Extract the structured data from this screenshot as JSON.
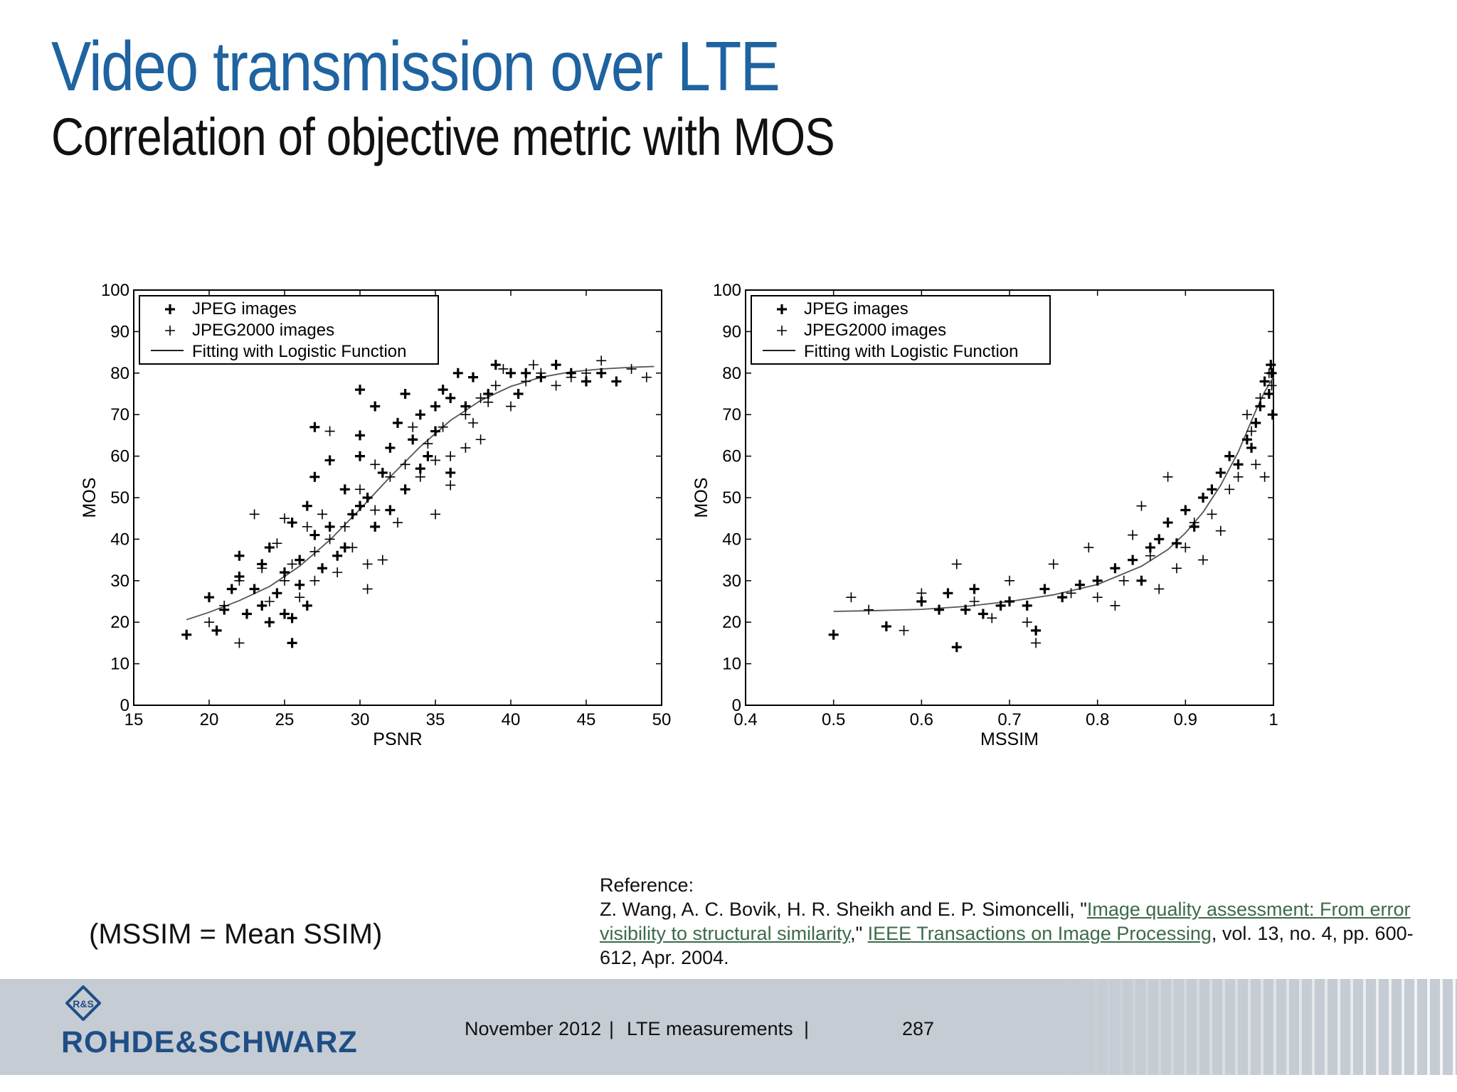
{
  "slide": {
    "title": "Video transmission over LTE",
    "subtitle": "Correlation of objective metric with MOS",
    "note": "(MSSIM = Mean SSIM)"
  },
  "reference": {
    "heading": "Reference:",
    "authors": "Z. Wang, A. C. Bovik, H. R. Sheikh and E. P. Simoncelli, \"",
    "paper_title": "Image quality assessment: From error visibility to structural similarity",
    "sep": ",\" ",
    "journal": "IEEE Transactions on Image Processing",
    "details": ", vol. 13, no. 4, pp. 600-612, Apr. 2004."
  },
  "footer": {
    "brand": "ROHDE&SCHWARZ",
    "date": "November 2012",
    "sep1": "|",
    "topic": "LTE measurements",
    "sep2": "|",
    "page": "287",
    "logo_letters": "R&S"
  },
  "chart_data": [
    {
      "type": "scatter",
      "xlabel": "PSNR",
      "ylabel": "MOS",
      "xlim": [
        15,
        50
      ],
      "ylim": [
        0,
        100
      ],
      "xticks": [
        15,
        20,
        25,
        30,
        35,
        40,
        45,
        50
      ],
      "yticks": [
        0,
        10,
        20,
        30,
        40,
        50,
        60,
        70,
        80,
        90,
        100
      ],
      "legend": [
        "JPEG images",
        "JPEG2000 images",
        "Fitting with Logistic Function"
      ],
      "legend_position": "top-left",
      "grid": false,
      "series": [
        {
          "name": "JPEG images",
          "marker": "bold-plus",
          "points": [
            [
              18.5,
              17
            ],
            [
              20,
              26
            ],
            [
              20.5,
              18
            ],
            [
              21,
              23
            ],
            [
              21.5,
              28
            ],
            [
              22,
              31
            ],
            [
              22,
              36
            ],
            [
              22.5,
              22
            ],
            [
              23,
              28
            ],
            [
              23.5,
              34
            ],
            [
              23.5,
              24
            ],
            [
              24,
              20
            ],
            [
              24,
              38
            ],
            [
              24.5,
              27
            ],
            [
              25,
              22
            ],
            [
              25,
              32
            ],
            [
              25.5,
              44
            ],
            [
              25.5,
              21
            ],
            [
              25.5,
              15
            ],
            [
              26,
              29
            ],
            [
              26,
              35
            ],
            [
              26.5,
              48
            ],
            [
              26.5,
              24
            ],
            [
              27,
              55
            ],
            [
              27,
              41
            ],
            [
              27,
              67
            ],
            [
              27.5,
              33
            ],
            [
              28,
              43
            ],
            [
              28,
              59
            ],
            [
              28.5,
              36
            ],
            [
              29,
              52
            ],
            [
              29,
              38
            ],
            [
              29.5,
              46
            ],
            [
              30,
              60
            ],
            [
              30,
              48
            ],
            [
              30,
              65
            ],
            [
              30.5,
              50
            ],
            [
              30,
              76
            ],
            [
              31,
              43
            ],
            [
              31,
              72
            ],
            [
              31.5,
              56
            ],
            [
              32,
              62
            ],
            [
              32,
              47
            ],
            [
              32.5,
              68
            ],
            [
              33,
              75
            ],
            [
              33,
              52
            ],
            [
              33.5,
              64
            ],
            [
              34,
              70
            ],
            [
              34,
              57
            ],
            [
              34.5,
              60
            ],
            [
              35,
              66
            ],
            [
              35,
              72
            ],
            [
              35.5,
              76
            ],
            [
              36,
              74
            ],
            [
              36,
              56
            ],
            [
              36.5,
              80
            ],
            [
              37,
              72
            ],
            [
              37.5,
              79
            ],
            [
              38.5,
              75
            ],
            [
              39,
              82
            ],
            [
              40,
              80
            ],
            [
              40.5,
              75
            ],
            [
              41,
              80
            ],
            [
              42,
              79
            ],
            [
              43,
              82
            ],
            [
              44,
              80
            ],
            [
              45,
              78
            ],
            [
              46,
              80
            ],
            [
              47,
              78
            ]
          ]
        },
        {
          "name": "JPEG2000 images",
          "marker": "plus",
          "points": [
            [
              20,
              20
            ],
            [
              21,
              24
            ],
            [
              22,
              15
            ],
            [
              22,
              30
            ],
            [
              23,
              46
            ],
            [
              23.5,
              33
            ],
            [
              24,
              25
            ],
            [
              24.5,
              39
            ],
            [
              25,
              30
            ],
            [
              25,
              45
            ],
            [
              25.5,
              34
            ],
            [
              26,
              26
            ],
            [
              26.5,
              43
            ],
            [
              27,
              37
            ],
            [
              27,
              30
            ],
            [
              27.5,
              46
            ],
            [
              28,
              40
            ],
            [
              28,
              66
            ],
            [
              28.5,
              32
            ],
            [
              29,
              43
            ],
            [
              29.5,
              38
            ],
            [
              30,
              52
            ],
            [
              30.5,
              34
            ],
            [
              30.5,
              28
            ],
            [
              31,
              47
            ],
            [
              31,
              58
            ],
            [
              31.5,
              35
            ],
            [
              32,
              55
            ],
            [
              32.5,
              44
            ],
            [
              33,
              58
            ],
            [
              33.5,
              67
            ],
            [
              34,
              55
            ],
            [
              34.5,
              63
            ],
            [
              35,
              46
            ],
            [
              35,
              59
            ],
            [
              35.5,
              67
            ],
            [
              36,
              53
            ],
            [
              36,
              60
            ],
            [
              37,
              62
            ],
            [
              37,
              70
            ],
            [
              37.5,
              68
            ],
            [
              38,
              64
            ],
            [
              38,
              74
            ],
            [
              38.5,
              73
            ],
            [
              39,
              77
            ],
            [
              39.5,
              81
            ],
            [
              40,
              72
            ],
            [
              41,
              78
            ],
            [
              41.5,
              82
            ],
            [
              42,
              80
            ],
            [
              43,
              77
            ],
            [
              44,
              79
            ],
            [
              45,
              80
            ],
            [
              46,
              83
            ],
            [
              47,
              78
            ],
            [
              48,
              81
            ],
            [
              49,
              79
            ]
          ]
        }
      ],
      "fit": {
        "name": "Fitting with Logistic Function",
        "points": [
          [
            18.5,
            20.6
          ],
          [
            20,
            22.4
          ],
          [
            22,
            25.2
          ],
          [
            24,
            28.6
          ],
          [
            26,
            33.5
          ],
          [
            28,
            39.8
          ],
          [
            30,
            47.2
          ],
          [
            32,
            55.0
          ],
          [
            34,
            62.3
          ],
          [
            36,
            68.6
          ],
          [
            38,
            73.4
          ],
          [
            40,
            76.8
          ],
          [
            42,
            79.0
          ],
          [
            44,
            80.3
          ],
          [
            46,
            81.0
          ],
          [
            48,
            81.4
          ],
          [
            49.5,
            81.6
          ]
        ]
      }
    },
    {
      "type": "scatter",
      "xlabel": "MSSIM",
      "ylabel": "MOS",
      "xlim": [
        0.4,
        1
      ],
      "ylim": [
        0,
        100
      ],
      "xticks": [
        0.4,
        0.5,
        0.6,
        0.7,
        0.8,
        0.9,
        1
      ],
      "yticks": [
        0,
        10,
        20,
        30,
        40,
        50,
        60,
        70,
        80,
        90,
        100
      ],
      "legend": [
        "JPEG images",
        "JPEG2000 images",
        "Fitting with Logistic Function"
      ],
      "legend_position": "top-left",
      "grid": false,
      "series": [
        {
          "name": "JPEG images",
          "marker": "bold-plus",
          "points": [
            [
              0.5,
              17
            ],
            [
              0.56,
              19
            ],
            [
              0.6,
              25
            ],
            [
              0.62,
              23
            ],
            [
              0.63,
              27
            ],
            [
              0.64,
              14
            ],
            [
              0.65,
              23
            ],
            [
              0.66,
              28
            ],
            [
              0.67,
              22
            ],
            [
              0.69,
              24
            ],
            [
              0.7,
              25
            ],
            [
              0.72,
              24
            ],
            [
              0.73,
              18
            ],
            [
              0.74,
              28
            ],
            [
              0.76,
              26
            ],
            [
              0.78,
              29
            ],
            [
              0.8,
              30
            ],
            [
              0.82,
              33
            ],
            [
              0.84,
              35
            ],
            [
              0.85,
              30
            ],
            [
              0.86,
              38
            ],
            [
              0.87,
              40
            ],
            [
              0.88,
              44
            ],
            [
              0.89,
              39
            ],
            [
              0.9,
              47
            ],
            [
              0.91,
              43
            ],
            [
              0.92,
              50
            ],
            [
              0.93,
              52
            ],
            [
              0.94,
              56
            ],
            [
              0.95,
              60
            ],
            [
              0.96,
              58
            ],
            [
              0.97,
              64
            ],
            [
              0.975,
              62
            ],
            [
              0.98,
              68
            ],
            [
              0.985,
              72
            ],
            [
              0.99,
              78
            ],
            [
              0.995,
              75
            ],
            [
              0.997,
              82
            ],
            [
              0.998,
              80
            ],
            [
              0.999,
              70
            ]
          ]
        },
        {
          "name": "JPEG2000 images",
          "marker": "plus",
          "points": [
            [
              0.52,
              26
            ],
            [
              0.54,
              23
            ],
            [
              0.58,
              18
            ],
            [
              0.6,
              27
            ],
            [
              0.64,
              34
            ],
            [
              0.66,
              25
            ],
            [
              0.68,
              21
            ],
            [
              0.7,
              30
            ],
            [
              0.72,
              20
            ],
            [
              0.73,
              15
            ],
            [
              0.75,
              34
            ],
            [
              0.77,
              27
            ],
            [
              0.79,
              38
            ],
            [
              0.8,
              26
            ],
            [
              0.82,
              24
            ],
            [
              0.83,
              30
            ],
            [
              0.84,
              41
            ],
            [
              0.85,
              48
            ],
            [
              0.86,
              36
            ],
            [
              0.87,
              28
            ],
            [
              0.88,
              55
            ],
            [
              0.89,
              33
            ],
            [
              0.9,
              38
            ],
            [
              0.91,
              44
            ],
            [
              0.92,
              35
            ],
            [
              0.93,
              46
            ],
            [
              0.94,
              42
            ],
            [
              0.95,
              52
            ],
            [
              0.96,
              55
            ],
            [
              0.97,
              70
            ],
            [
              0.975,
              66
            ],
            [
              0.98,
              58
            ],
            [
              0.985,
              74
            ],
            [
              0.99,
              55
            ],
            [
              0.995,
              80
            ],
            [
              0.998,
              77
            ]
          ]
        }
      ],
      "fit": {
        "name": "Fitting with Logistic Function",
        "points": [
          [
            0.5,
            22.6
          ],
          [
            0.55,
            22.8
          ],
          [
            0.6,
            23.1
          ],
          [
            0.65,
            23.8
          ],
          [
            0.7,
            25.0
          ],
          [
            0.75,
            26.6
          ],
          [
            0.8,
            29.1
          ],
          [
            0.85,
            33.5
          ],
          [
            0.88,
            37.5
          ],
          [
            0.9,
            41.5
          ],
          [
            0.92,
            46.5
          ],
          [
            0.94,
            53.0
          ],
          [
            0.96,
            61.0
          ],
          [
            0.97,
            66.0
          ],
          [
            0.98,
            71.0
          ],
          [
            0.99,
            75.5
          ],
          [
            1.0,
            79.0
          ]
        ]
      }
    }
  ]
}
